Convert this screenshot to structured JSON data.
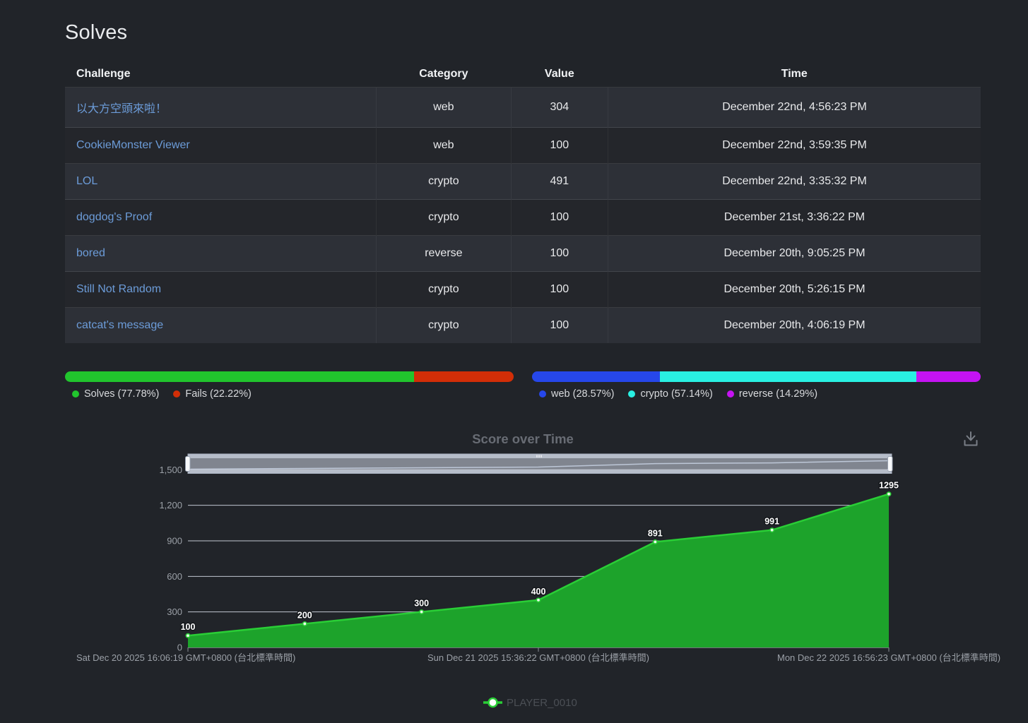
{
  "page": {
    "title": "Solves"
  },
  "table": {
    "headers": [
      "Challenge",
      "Category",
      "Value",
      "Time"
    ],
    "rows": [
      {
        "challenge": "以大方空頭來啦！",
        "category": "web",
        "value": "304",
        "time": "December 22nd, 4:56:23 PM"
      },
      {
        "challenge": "CookieMonster Viewer",
        "category": "web",
        "value": "100",
        "time": "December 22nd, 3:59:35 PM"
      },
      {
        "challenge": "LOL",
        "category": "crypto",
        "value": "491",
        "time": "December 22nd, 3:35:32 PM"
      },
      {
        "challenge": "dogdog's Proof",
        "category": "crypto",
        "value": "100",
        "time": "December 21st, 3:36:22 PM"
      },
      {
        "challenge": "bored",
        "category": "reverse",
        "value": "100",
        "time": "December 20th, 9:05:25 PM"
      },
      {
        "challenge": "Still Not Random",
        "category": "crypto",
        "value": "100",
        "time": "December 20th, 5:26:15 PM"
      },
      {
        "challenge": "catcat's message",
        "category": "crypto",
        "value": "100",
        "time": "December 20th, 4:06:19 PM"
      }
    ]
  },
  "solve_ratio_bar": {
    "segments": [
      {
        "name": "Solves",
        "pct": 77.78,
        "legend": "Solves (77.78%)",
        "color": "#21c52d"
      },
      {
        "name": "Fails",
        "pct": 22.22,
        "legend": "Fails (22.22%)",
        "color": "#d22e07"
      }
    ]
  },
  "category_ratio_bar": {
    "segments": [
      {
        "name": "web",
        "pct": 28.57,
        "legend": "web (28.57%)",
        "color": "#2647ea"
      },
      {
        "name": "crypto",
        "pct": 57.14,
        "legend": "crypto (57.14%)",
        "color": "#29f0e2"
      },
      {
        "name": "reverse",
        "pct": 14.29,
        "legend": "reverse (14.29%)",
        "color": "#c513f2"
      }
    ]
  },
  "chart_data": {
    "type": "area",
    "title": "Score over Time",
    "series": [
      {
        "name": "PLAYER_0010",
        "values": [
          100,
          200,
          300,
          400,
          891,
          991,
          1295
        ]
      }
    ],
    "point_labels": [
      "100",
      "200",
      "300",
      "400",
      "891",
      "991",
      "1295"
    ],
    "x_axis": {
      "visible_labels": [
        {
          "index": 0,
          "text": "Sat Dec 20 2025 16:06:19 GMT+0800 (台北標準時間)"
        },
        {
          "index": 3,
          "text": "Sun Dec 21 2025 15:36:22 GMT+0800 (台北標準時間)"
        },
        {
          "index": 6,
          "text": "Mon Dec 22 2025 16:56:23 GMT+0800 (台北標準時間)"
        }
      ]
    },
    "y_axis": {
      "tick_labels": [
        "0",
        "300",
        "600",
        "900",
        "1,200",
        "1,500"
      ],
      "tick_values": [
        0,
        300,
        600,
        900,
        1200,
        1500
      ],
      "ylim": [
        0,
        1500
      ]
    },
    "grid": true,
    "legend": {
      "position": "bottom",
      "entries": [
        "PLAYER_0010"
      ]
    },
    "range_slider": {
      "visible": true
    },
    "toolbox": {
      "icon": "download-icon"
    },
    "colors": {
      "line": "#2ace36",
      "fill": "#1da32b",
      "point_fill": "#eafbea",
      "label_text": "#ffffff",
      "label_outline": "#15181c",
      "axis_text": "#9ba0a7",
      "grid_line": "#dde3ee",
      "title": "#686c74",
      "legend_text": "#4b4f55",
      "slider_band": "#b6bdc9",
      "slider_fill": "#80858f",
      "slider_handle": "#f7f9fb"
    }
  }
}
